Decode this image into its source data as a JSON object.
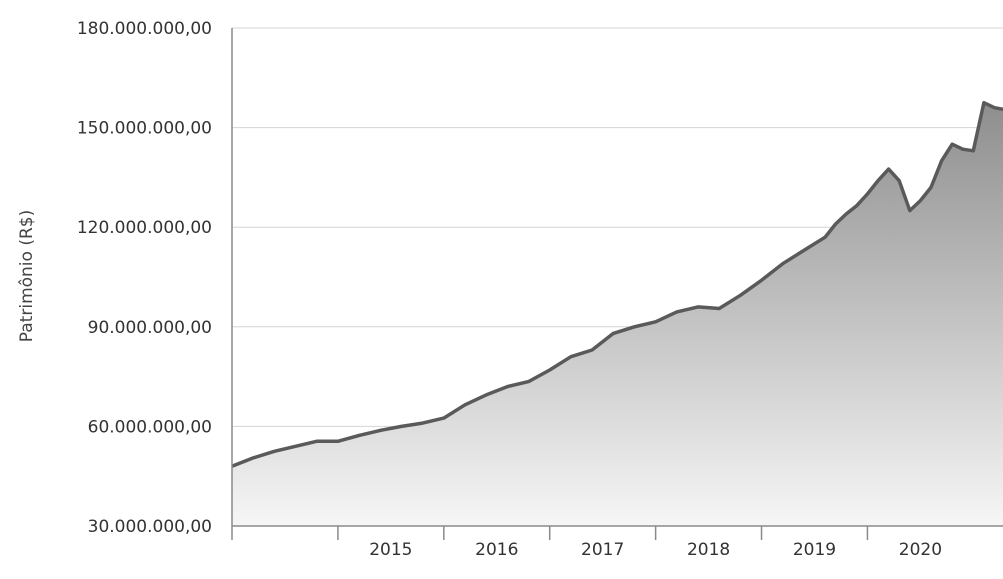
{
  "chart_data": {
    "type": "area",
    "title": "",
    "xlabel": "",
    "ylabel": "Patrimônio (R$)",
    "y_tick_labels": [
      "30.000.000,00",
      "60.000.000,00",
      "90.000.000,00",
      "120.000.000,00",
      "150.000.000,00",
      "180.000.000,00"
    ],
    "y_ticks": [
      30000000,
      60000000,
      90000000,
      120000000,
      150000000,
      180000000
    ],
    "ylim": [
      30000000,
      180000000
    ],
    "x_tick_labels": [
      "2015",
      "2016",
      "2017",
      "2018",
      "2019",
      "2020"
    ],
    "x_ticks": [
      2015,
      2016,
      2017,
      2018,
      2019,
      2020
    ],
    "xlim": [
      2014.0,
      2021.28
    ],
    "grid": "horizontal",
    "line_color": "#5a5a5a",
    "fill_color_top": "#8e8e8e",
    "fill_color_bottom": "#f6f6f6",
    "series": [
      {
        "x": [
          2014.0,
          2014.2,
          2014.4,
          2014.6,
          2014.8,
          2015.0,
          2015.2,
          2015.4,
          2015.6,
          2015.8,
          2016.0,
          2016.2,
          2016.4,
          2016.6,
          2016.8,
          2017.0,
          2017.2,
          2017.4,
          2017.6,
          2017.8,
          2018.0,
          2018.2,
          2018.4,
          2018.6,
          2018.8,
          2019.0,
          2019.2,
          2019.4,
          2019.6,
          2019.7,
          2019.8,
          2019.9,
          2020.0,
          2020.1,
          2020.2,
          2020.3,
          2020.4,
          2020.5,
          2020.6,
          2020.7,
          2020.8,
          2020.9,
          2021.0,
          2021.1,
          2021.2,
          2021.28
        ],
        "y": [
          48000000,
          50500000,
          52500000,
          54000000,
          55500000,
          55500000,
          57300000,
          58800000,
          60000000,
          61000000,
          62500000,
          66500000,
          69500000,
          72000000,
          73500000,
          77000000,
          81000000,
          83000000,
          88000000,
          90000000,
          91500000,
          94500000,
          96000000,
          95500000,
          99500000,
          104000000,
          109000000,
          113000000,
          117000000,
          121000000,
          124000000,
          126500000,
          130000000,
          134000000,
          137500000,
          134000000,
          125000000,
          128000000,
          132000000,
          140000000,
          145000000,
          143500000,
          143000000,
          157500000,
          156000000,
          155500000
        ]
      }
    ]
  }
}
